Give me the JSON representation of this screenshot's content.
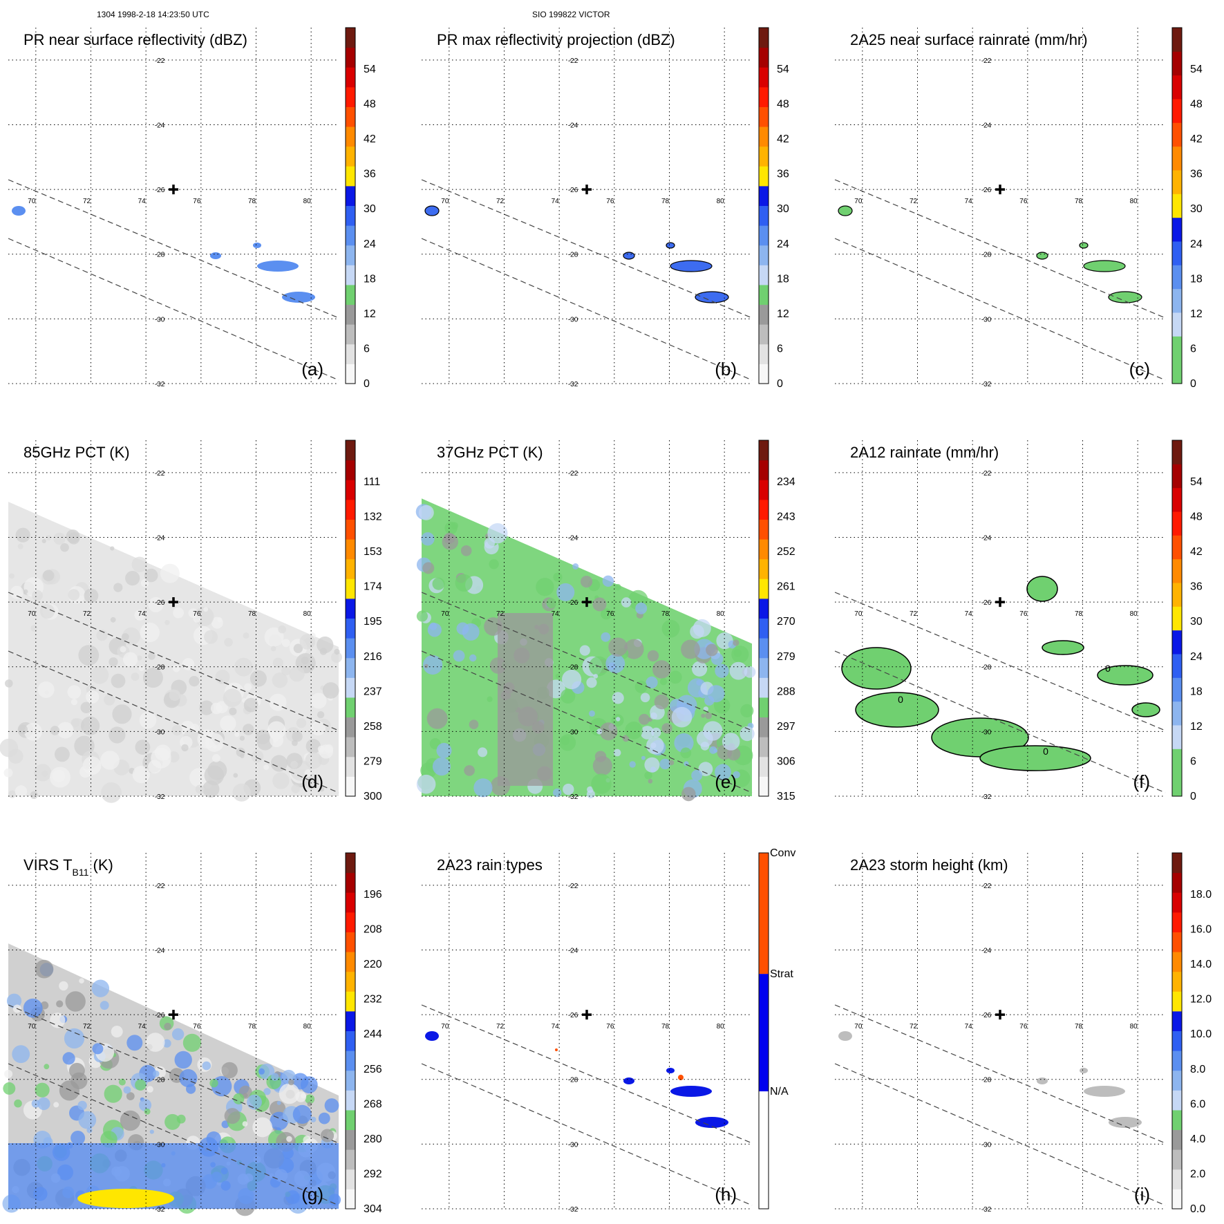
{
  "header": {
    "left": "1304 1998-2-18 14:23:50 UTC",
    "center": "SIO 199822 VICTOR"
  },
  "chart_data": [
    {
      "id": "a",
      "type": "heatmap",
      "title": "PR near surface reflectivity (dBZ)",
      "panel_label": "(a)",
      "lon_ticks": [
        "70",
        "72",
        "74",
        "76",
        "78",
        "80"
      ],
      "lat_ticks": [
        "-22",
        "-24",
        "-26",
        "-28",
        "-30",
        "-32"
      ],
      "colorbar_labels": [
        "0",
        "6",
        "12",
        "18",
        "24",
        "30",
        "36",
        "42",
        "48",
        "54"
      ],
      "colorbar_colors": [
        "#f7f7f7",
        "#e2e2e2",
        "#bdbdbd",
        "#9a9a9a",
        "#70d070",
        "#c6d8f5",
        "#8db5ef",
        "#5b8ff0",
        "#2f5ff2",
        "#0a18e6",
        "#ffe600",
        "#ffb300",
        "#ff8a00",
        "#ff5000",
        "#ff1a00",
        "#d90000",
        "#a50000",
        "#6e1a10"
      ],
      "data_color": "#5b8ff0"
    },
    {
      "id": "b",
      "type": "heatmap",
      "title": "PR max reflectivity projection (dBZ)",
      "panel_label": "(b)",
      "lon_ticks": [
        "70",
        "72",
        "74",
        "76",
        "78",
        "80"
      ],
      "lat_ticks": [
        "-22",
        "-24",
        "-26",
        "-28",
        "-30",
        "-32"
      ],
      "colorbar_labels": [
        "0",
        "6",
        "12",
        "18",
        "24",
        "30",
        "36",
        "42",
        "48",
        "54"
      ],
      "colorbar_colors": [
        "#f7f7f7",
        "#e2e2e2",
        "#bdbdbd",
        "#9a9a9a",
        "#70d070",
        "#c6d8f5",
        "#8db5ef",
        "#5b8ff0",
        "#2f5ff2",
        "#0a18e6",
        "#ffe600",
        "#ffb300",
        "#ff8a00",
        "#ff5000",
        "#ff1a00",
        "#d90000",
        "#a50000",
        "#6e1a10"
      ],
      "data_color": "#3d6cf0"
    },
    {
      "id": "c",
      "type": "heatmap",
      "title": "2A25 near surface rainrate (mm/hr)",
      "panel_label": "(c)",
      "lon_ticks": [
        "70",
        "72",
        "74",
        "76",
        "78",
        "80"
      ],
      "lat_ticks": [
        "-22",
        "-24",
        "-26",
        "-28",
        "-30",
        "-32"
      ],
      "colorbar_labels": [
        "0",
        "6",
        "12",
        "18",
        "24",
        "30",
        "36",
        "42",
        "48",
        "54"
      ],
      "colorbar_colors": [
        "#70d070",
        "#70d070",
        "#c6d8f5",
        "#8db5ef",
        "#5b8ff0",
        "#2f5ff2",
        "#0a18e6",
        "#ffe600",
        "#ffb300",
        "#ff8a00",
        "#ff5000",
        "#ff1a00",
        "#d90000",
        "#a50000",
        "#6e1a10"
      ],
      "data_color": "#70d070"
    },
    {
      "id": "d",
      "type": "heatmap",
      "title": "85GHz PCT (K)",
      "panel_label": "(d)",
      "lon_ticks": [
        "70",
        "72",
        "74",
        "76",
        "78",
        "80"
      ],
      "lat_ticks": [
        "-22",
        "-24",
        "-26",
        "-28",
        "-30",
        "-32"
      ],
      "colorbar_labels": [
        "300",
        "279",
        "258",
        "237",
        "216",
        "195",
        "174",
        "153",
        "132",
        "111"
      ],
      "colorbar_colors": [
        "#f7f7f7",
        "#e2e2e2",
        "#bdbdbd",
        "#9a9a9a",
        "#70d070",
        "#c6d8f5",
        "#8db5ef",
        "#5b8ff0",
        "#2f5ff2",
        "#0a18e6",
        "#ffe600",
        "#ffb300",
        "#ff8a00",
        "#ff5000",
        "#ff1a00",
        "#d90000",
        "#a50000",
        "#6e1a10"
      ],
      "data_color": "#e6e6e6"
    },
    {
      "id": "e",
      "type": "heatmap",
      "title": "37GHz PCT (K)",
      "panel_label": "(e)",
      "lon_ticks": [
        "70",
        "72",
        "74",
        "76",
        "78",
        "80"
      ],
      "lat_ticks": [
        "-22",
        "-24",
        "-26",
        "-28",
        "-30",
        "-32"
      ],
      "colorbar_labels": [
        "315",
        "306",
        "297",
        "288",
        "279",
        "270",
        "261",
        "252",
        "243",
        "234"
      ],
      "colorbar_colors": [
        "#f7f7f7",
        "#e2e2e2",
        "#bdbdbd",
        "#9a9a9a",
        "#70d070",
        "#c6d8f5",
        "#8db5ef",
        "#5b8ff0",
        "#2f5ff2",
        "#0a18e6",
        "#ffe600",
        "#ffb300",
        "#ff8a00",
        "#ff5000",
        "#ff1a00",
        "#d90000",
        "#a50000",
        "#6e1a10"
      ],
      "data_color": "#7fd67f"
    },
    {
      "id": "f",
      "type": "heatmap",
      "title": "2A12 rainrate (mm/hr)",
      "panel_label": "(f)",
      "lon_ticks": [
        "70",
        "72",
        "74",
        "76",
        "78",
        "80"
      ],
      "lat_ticks": [
        "-22",
        "-24",
        "-26",
        "-28",
        "-30",
        "-32"
      ],
      "colorbar_labels": [
        "0",
        "6",
        "12",
        "18",
        "24",
        "30",
        "36",
        "42",
        "48",
        "54"
      ],
      "colorbar_colors": [
        "#70d070",
        "#70d070",
        "#c6d8f5",
        "#8db5ef",
        "#5b8ff0",
        "#2f5ff2",
        "#0a18e6",
        "#ffe600",
        "#ffb300",
        "#ff8a00",
        "#ff5000",
        "#ff1a00",
        "#d90000",
        "#a50000",
        "#6e1a10"
      ],
      "data_color": "#70d070",
      "contour_labels": [
        "0",
        "0",
        "0"
      ]
    },
    {
      "id": "g",
      "type": "heatmap",
      "title": "VIRS T",
      "title_sub": "B11",
      "title_unit": " (K)",
      "panel_label": "(g)",
      "lon_ticks": [
        "70",
        "72",
        "74",
        "76",
        "78",
        "80"
      ],
      "lat_ticks": [
        "-22",
        "-24",
        "-26",
        "-28",
        "-30",
        "-32"
      ],
      "colorbar_labels": [
        "304",
        "292",
        "280",
        "268",
        "256",
        "244",
        "232",
        "220",
        "208",
        "196"
      ],
      "colorbar_colors": [
        "#f7f7f7",
        "#e2e2e2",
        "#bdbdbd",
        "#9a9a9a",
        "#70d070",
        "#c6d8f5",
        "#8db5ef",
        "#5b8ff0",
        "#2f5ff2",
        "#0a18e6",
        "#ffe600",
        "#ffb300",
        "#ff8a00",
        "#ff5000",
        "#ff1a00",
        "#d90000",
        "#a50000",
        "#6e1a10"
      ],
      "data_color": "#d0d0d0"
    },
    {
      "id": "h",
      "type": "heatmap",
      "title": "2A23 rain types",
      "panel_label": "(h)",
      "lon_ticks": [
        "70",
        "72",
        "74",
        "76",
        "78",
        "80"
      ],
      "lat_ticks": [
        "-22",
        "-24",
        "-26",
        "-28",
        "-30",
        "-32"
      ],
      "colorbar_categories": [
        "N/A",
        "Strat",
        "Conv"
      ],
      "colorbar_colors": [
        "#ffffff",
        "#0000ee",
        "#ff5000"
      ],
      "data_color": "#0a18e6"
    },
    {
      "id": "i",
      "type": "heatmap",
      "title": "2A23 storm height (km)",
      "panel_label": "(i)",
      "lon_ticks": [
        "70",
        "72",
        "74",
        "76",
        "78",
        "80"
      ],
      "lat_ticks": [
        "-22",
        "-24",
        "-26",
        "-28",
        "-30",
        "-32"
      ],
      "colorbar_labels": [
        "0.0",
        "2.0",
        "4.0",
        "6.0",
        "8.0",
        "10.0",
        "12.0",
        "14.0",
        "16.0",
        "18.0"
      ],
      "colorbar_colors": [
        "#f7f7f7",
        "#e2e2e2",
        "#bdbdbd",
        "#9a9a9a",
        "#70d070",
        "#c6d8f5",
        "#8db5ef",
        "#5b8ff0",
        "#2f5ff2",
        "#0a18e6",
        "#ffe600",
        "#ffb300",
        "#ff8a00",
        "#ff5000",
        "#ff1a00",
        "#d90000",
        "#a50000",
        "#6e1a10"
      ],
      "data_color": "#bdbdbd"
    }
  ]
}
